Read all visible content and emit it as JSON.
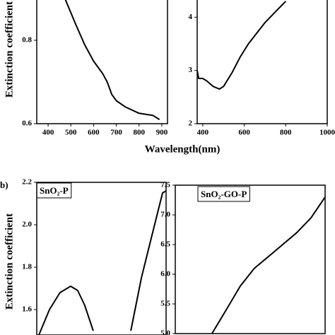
{
  "chart_data": [
    {
      "type": "line",
      "ylabel": "Extinction coefficient",
      "xlabel": "Wavelength(nm)",
      "color": "#000000",
      "x": [
        474,
        520,
        560,
        600,
        640,
        660,
        680,
        700,
        740,
        800,
        860,
        890
      ],
      "values": [
        0.9,
        0.84,
        0.79,
        0.75,
        0.72,
        0.7,
        0.67,
        0.655,
        0.64,
        0.625,
        0.62,
        0.61
      ],
      "xlim": [
        350,
        925
      ],
      "xticks": [
        400,
        500,
        600,
        700,
        800,
        900
      ],
      "ylim": [
        0.6,
        0.9
      ],
      "yticks": [
        0.6,
        0.8
      ]
    },
    {
      "type": "line",
      "color": "#000000",
      "x": [
        373,
        380,
        400,
        420,
        450,
        480,
        500,
        540,
        580,
        620,
        660,
        700,
        750,
        800
      ],
      "values": [
        3.0,
        2.85,
        2.85,
        2.8,
        2.7,
        2.65,
        2.7,
        2.95,
        3.25,
        3.5,
        3.7,
        3.9,
        4.1,
        4.3
      ],
      "xlim": [
        373,
        1000
      ],
      "xticks": [
        400,
        600,
        800,
        1000
      ],
      "ylim": [
        2,
        4.35
      ],
      "yticks": [
        2,
        3,
        4
      ]
    },
    {
      "type": "line",
      "figure_label": "b)",
      "panel_label": "SnO₂-P",
      "ylabel": "Extinction coefficient",
      "color": "#000000",
      "x": [
        359,
        404,
        449,
        494,
        524,
        554,
        590,
        670,
        750,
        795,
        840,
        885,
        900
      ],
      "values": [
        1.48,
        1.6,
        1.68,
        1.71,
        1.69,
        1.62,
        1.5,
        null,
        1.5,
        1.75,
        1.95,
        2.15,
        2.16
      ],
      "xlim": [
        350,
        900
      ],
      "ylim": [
        1.48,
        2.2
      ],
      "yticks": [
        1.6,
        1.8,
        {
          "value": 2,
          "label": "2.0"
        },
        2.2
      ]
    },
    {
      "type": "line",
      "panel_label": "SnO₂-GO-P",
      "color": "#000000",
      "x": [
        509,
        571,
        632,
        693,
        755,
        816,
        877,
        939,
        1000
      ],
      "values": [
        5.0,
        5.4,
        5.8,
        6.1,
        6.3,
        6.5,
        6.7,
        6.95,
        7.3
      ],
      "xlim": [
        350,
        1000
      ],
      "ylim": [
        5.0,
        7.5
      ],
      "yticks": [
        {
          "value": 5,
          "label": "5.0"
        },
        5.5,
        {
          "value": 6,
          "label": "6.0"
        },
        6.5,
        {
          "value": 7,
          "label": "7.0"
        },
        7.5
      ]
    }
  ]
}
